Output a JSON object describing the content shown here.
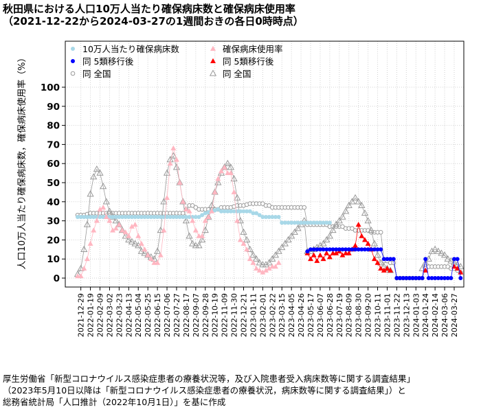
{
  "header": {
    "title": "秋田県における人口10万人当たり確保病床数と確保病床使用率",
    "subtitle": "（2021-12-22から2024-03-27の1週間おきの各日0時時点）"
  },
  "source": {
    "line1": "厚生労働省「新型コロナウイルス感染症患者の療養状況等，及び入院患者受入病床数等に関する調査結果」",
    "line2": "（2023年5月10日以降は「新型コロナウイルス感染症患者の療養状況，病床数等に関する調査結果」）と",
    "line3": "総務省統計局「人口推計（2022年10月1日）」を基に作成"
  },
  "chart_data": {
    "type": "scatter",
    "ylabel": "人口10万人当たり確保病床数，確保病床使用率（%）",
    "ylim": [
      0,
      100
    ],
    "yticks": [
      0,
      10,
      20,
      30,
      40,
      50,
      60,
      70,
      80,
      90,
      100
    ],
    "x_start": "2021-12-22",
    "x_interval_days": 7,
    "x_count": 119,
    "xtick_labels": [
      "2021-12-29",
      "2022-01-19",
      "2022-02-09",
      "2022-03-02",
      "2022-03-23",
      "2022-04-13",
      "2022-05-04",
      "2022-05-25",
      "2022-06-15",
      "2022-07-06",
      "2022-07-27",
      "2022-08-17",
      "2022-09-07",
      "2022-09-28",
      "2022-10-19",
      "2022-11-09",
      "2022-11-30",
      "2022-12-21",
      "2023-01-11",
      "2023-02-01",
      "2023-02-22",
      "2023-03-15",
      "2023-04-05",
      "2023-04-26",
      "2023-05-17",
      "2023-06-07",
      "2023-06-28",
      "2023-07-19",
      "2023-08-09",
      "2023-08-30",
      "2023-09-20",
      "2023-10-11",
      "2023-11-01",
      "2023-11-22",
      "2023-12-13",
      "2024-01-03",
      "2024-01-24",
      "2024-02-14",
      "2024-03-06",
      "2024-03-27"
    ],
    "grid": true,
    "legend_position": "top-left",
    "series": [
      {
        "name": "10万人当たり確保病床数",
        "marker": "circle-filled",
        "color": "#a8d8e8",
        "values": [
          32,
          32,
          32,
          32,
          32,
          32,
          32,
          32,
          32,
          32,
          32,
          32,
          32,
          32,
          32,
          32,
          32,
          32,
          32,
          32,
          32,
          32,
          32,
          32,
          32,
          32,
          32,
          32,
          32,
          32,
          32,
          32,
          32,
          32,
          32,
          32,
          32,
          32,
          32,
          33,
          34,
          34.5,
          35,
          35.5,
          36,
          35,
          35,
          35,
          35,
          35,
          35,
          35,
          35,
          35,
          35,
          34,
          34,
          33,
          32,
          32,
          32,
          32,
          32,
          32,
          29,
          29,
          29,
          29,
          29,
          29,
          29,
          29,
          29,
          29,
          29,
          29,
          29,
          29,
          29,
          29,
          null,
          null,
          null,
          null,
          null,
          null,
          null,
          null,
          null,
          null,
          null,
          null,
          null,
          null,
          null,
          null,
          null,
          null,
          null,
          null,
          null,
          null,
          null,
          null,
          null,
          null,
          null,
          null,
          null,
          null,
          null,
          null,
          null,
          null,
          null,
          null,
          null,
          null,
          null
        ]
      },
      {
        "name": "確保病床使用率",
        "marker": "triangle-filled",
        "color": "#ffb6c1",
        "values": [
          1,
          1,
          5,
          10,
          18,
          25,
          30,
          36,
          37,
          32,
          30,
          25,
          26,
          28,
          25,
          24,
          22,
          27,
          28,
          22,
          18,
          15,
          12,
          10,
          8,
          8,
          12,
          25,
          42,
          60,
          68,
          62,
          50,
          40,
          36,
          35,
          30,
          25,
          22,
          22,
          30,
          32,
          35,
          45,
          52,
          56,
          58,
          55,
          55,
          45,
          30,
          20,
          18,
          15,
          10,
          8,
          5,
          4,
          3,
          4,
          5,
          6,
          6,
          8,
          null,
          null,
          null,
          null,
          null,
          null,
          null,
          null,
          null,
          null,
          null,
          null,
          null,
          null,
          null,
          null,
          null,
          null,
          null,
          null,
          null,
          null,
          null,
          null,
          null,
          null,
          null,
          null,
          null,
          null,
          null,
          null,
          null,
          null,
          null,
          null,
          null,
          null,
          null,
          null,
          null,
          null,
          null,
          null,
          null,
          null,
          null,
          null,
          null,
          null,
          null,
          null,
          null,
          null,
          null
        ]
      },
      {
        "name": "同 5類移行後",
        "marker": "circle-filled",
        "color": "#0000ff",
        "values": [
          null,
          null,
          null,
          null,
          null,
          null,
          null,
          null,
          null,
          null,
          null,
          null,
          null,
          null,
          null,
          null,
          null,
          null,
          null,
          null,
          null,
          null,
          null,
          null,
          null,
          null,
          null,
          null,
          null,
          null,
          null,
          null,
          null,
          null,
          null,
          null,
          null,
          null,
          null,
          null,
          null,
          null,
          null,
          null,
          null,
          null,
          null,
          null,
          null,
          null,
          null,
          null,
          null,
          null,
          null,
          null,
          null,
          null,
          null,
          null,
          null,
          null,
          null,
          null,
          null,
          null,
          null,
          null,
          null,
          null,
          null,
          null,
          14,
          15,
          15,
          15,
          15,
          15,
          15,
          15,
          15,
          15,
          15,
          15,
          15,
          15,
          15,
          15,
          15,
          15,
          15,
          15,
          15,
          15,
          15,
          15,
          10,
          10,
          10,
          10,
          0,
          0,
          0,
          0,
          0,
          0,
          0,
          0,
          0,
          10,
          0,
          0,
          0,
          0,
          0,
          0,
          0,
          0,
          10,
          10,
          0
        ]
      },
      {
        "name": "同 5類移行後",
        "marker": "triangle-filled",
        "color": "#ff0000",
        "values": [
          null,
          null,
          null,
          null,
          null,
          null,
          null,
          null,
          null,
          null,
          null,
          null,
          null,
          null,
          null,
          null,
          null,
          null,
          null,
          null,
          null,
          null,
          null,
          null,
          null,
          null,
          null,
          null,
          null,
          null,
          null,
          null,
          null,
          null,
          null,
          null,
          null,
          null,
          null,
          null,
          null,
          null,
          null,
          null,
          null,
          null,
          null,
          null,
          null,
          null,
          null,
          null,
          null,
          null,
          null,
          null,
          null,
          null,
          null,
          null,
          null,
          null,
          null,
          null,
          null,
          null,
          null,
          null,
          null,
          null,
          null,
          null,
          13,
          10,
          12,
          9,
          12,
          10,
          13,
          11,
          13,
          13,
          14,
          12,
          13,
          13,
          15,
          17,
          28,
          22,
          20,
          18,
          15,
          10,
          8,
          5,
          4,
          5,
          4,
          null,
          null,
          null,
          null,
          null,
          null,
          null,
          null,
          null,
          null,
          4,
          null,
          null,
          null,
          null,
          null,
          null,
          null,
          null,
          6,
          5,
          3
        ]
      },
      {
        "name": "同 全国",
        "marker": "circle-open",
        "color": "#999999",
        "values": [
          33,
          33,
          33,
          33.5,
          34,
          34,
          34,
          34,
          34,
          34,
          34,
          34,
          34,
          34,
          34,
          34,
          34,
          34,
          34,
          34,
          34,
          34,
          34,
          34,
          34,
          34,
          34,
          34,
          34,
          34,
          34,
          34,
          34,
          34,
          36,
          38,
          38,
          37,
          36,
          36,
          36,
          36,
          36,
          36,
          36,
          37,
          37,
          37,
          37,
          37.5,
          38,
          38,
          38,
          38.5,
          39,
          39,
          39,
          39,
          39,
          38,
          38,
          37,
          37,
          37,
          37,
          37,
          37,
          37,
          37,
          37,
          37,
          37,
          28,
          28,
          28,
          28,
          28,
          28,
          28,
          27,
          27,
          27,
          27,
          27,
          26,
          26,
          26,
          25,
          25,
          25,
          25,
          25,
          24,
          24,
          24,
          24,
          9,
          9,
          8,
          8,
          0,
          0,
          0,
          0,
          0,
          0,
          0,
          0,
          0,
          5,
          6,
          6,
          6,
          6,
          6,
          6,
          6,
          5,
          5,
          4,
          3
        ]
      },
      {
        "name": "同 全国",
        "marker": "triangle-open",
        "color": "#999999",
        "values": [
          2,
          5,
          15,
          28,
          44,
          53,
          57,
          55,
          48,
          40,
          35,
          32,
          30,
          28,
          25,
          22,
          20,
          19,
          18,
          17,
          14,
          13,
          12,
          11,
          10,
          14,
          25,
          40,
          55,
          62,
          64,
          58,
          50,
          40,
          30,
          22,
          18,
          17,
          17,
          20,
          25,
          32,
          38,
          45,
          50,
          55,
          58,
          60,
          58,
          52,
          42,
          30,
          24,
          20,
          15,
          12,
          10,
          8,
          7,
          7,
          8,
          10,
          12,
          14,
          16,
          18,
          20,
          22,
          24,
          26,
          28,
          30,
          14,
          14,
          15,
          16,
          17,
          18,
          20,
          22,
          25,
          28,
          30,
          32,
          35,
          38,
          40,
          42,
          40,
          38,
          34,
          30,
          25,
          18,
          12,
          8,
          6,
          5,
          4,
          null,
          null,
          null,
          null,
          null,
          null,
          null,
          null,
          null,
          5,
          8,
          10,
          14,
          15,
          14,
          13,
          12,
          10,
          9,
          8,
          7,
          6
        ]
      }
    ]
  }
}
